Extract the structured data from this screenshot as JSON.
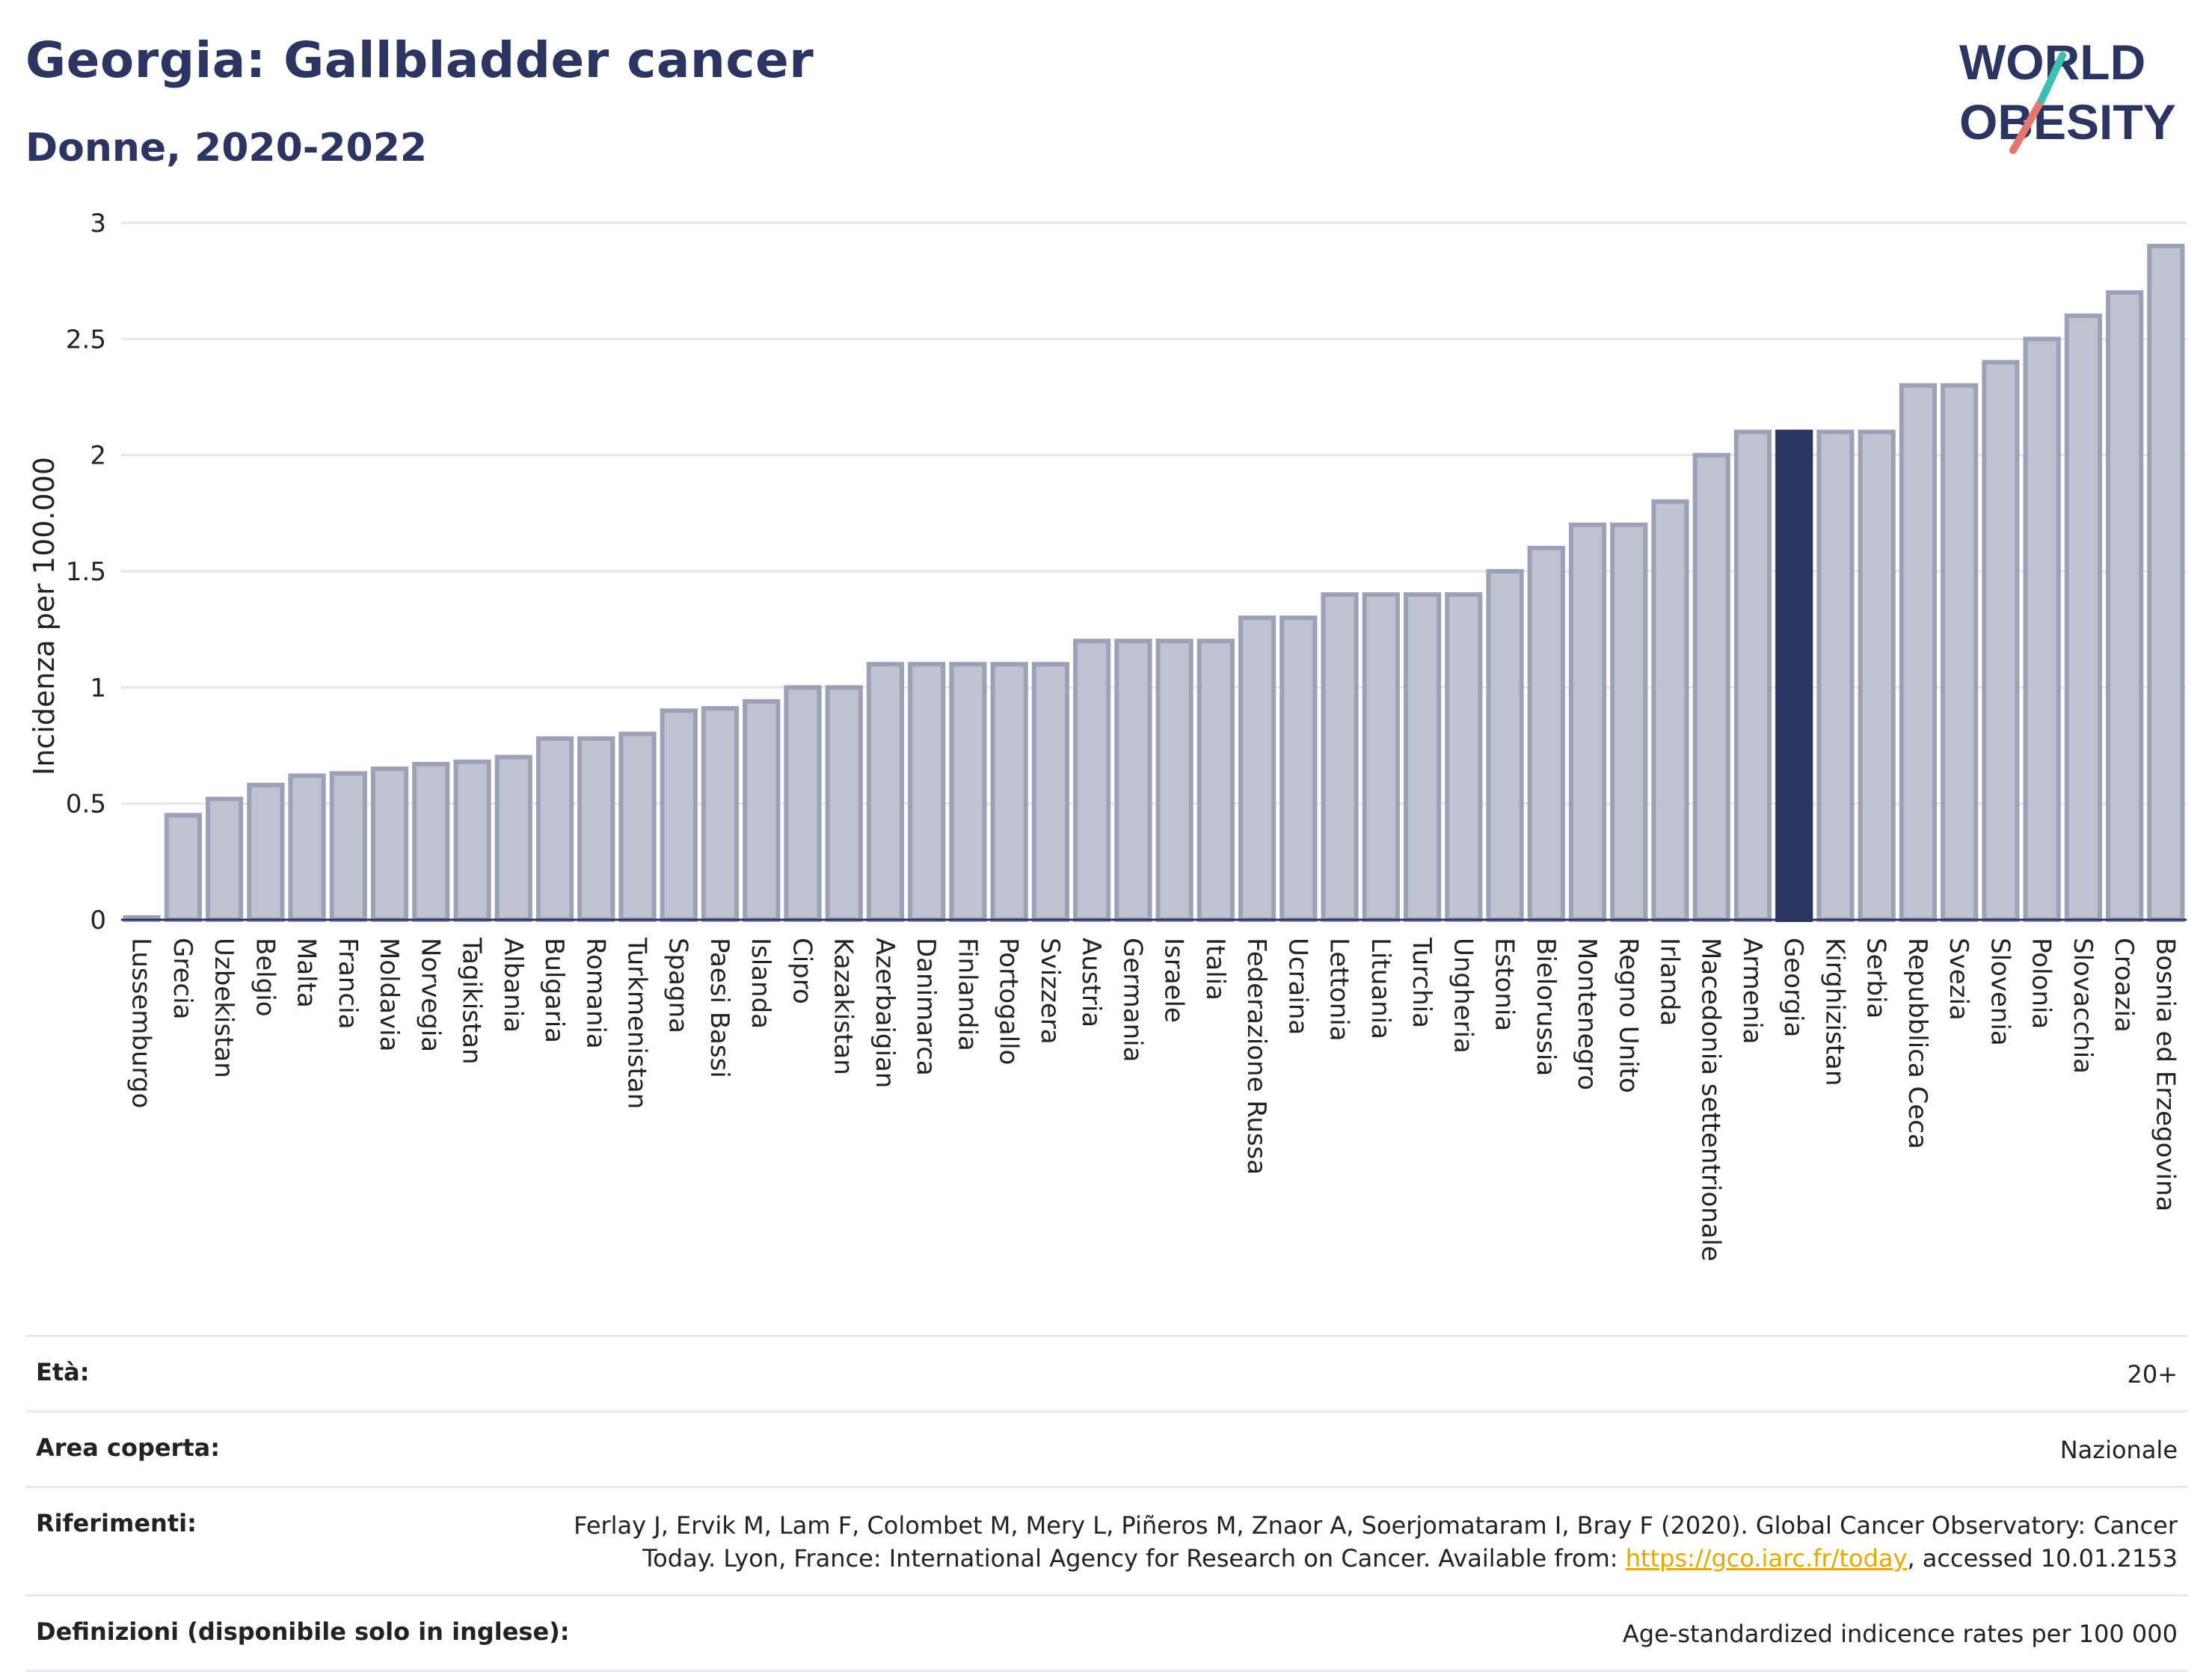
{
  "header": {
    "title": "Georgia: Gallbladder cancer",
    "subtitle": "Donne, 2020-2022",
    "logo_line1": "WORLD",
    "logo_line2": "OBESITY"
  },
  "colors": {
    "highlight": "#283462",
    "bar_fill": "#bfc3d0",
    "bar_stroke": "#9ba2b8",
    "title": "#2a3562",
    "logo_teal": "#3cbfae",
    "logo_coral": "#e8756a",
    "link": "#e8a800"
  },
  "chart_data": {
    "type": "bar",
    "ylabel": "Incidenza per 100.000",
    "ylim": [
      0,
      3
    ],
    "yticks": [
      "0",
      "0.5",
      "1",
      "1.5",
      "2",
      "2.5",
      "3"
    ],
    "ytick_values": [
      0,
      0.5,
      1,
      1.5,
      2,
      2.5,
      3
    ],
    "grid": true,
    "highlight": "Georgia",
    "categories": [
      "Lussemburgo",
      "Grecia",
      "Uzbekistan",
      "Belgio",
      "Malta",
      "Francia",
      "Moldavia",
      "Norvegia",
      "Tagikistan",
      "Albania",
      "Bulgaria",
      "Romania",
      "Turkmenistan",
      "Spagna",
      "Paesi Bassi",
      "Islanda",
      "Cipro",
      "Kazakistan",
      "Azerbaigian",
      "Danimarca",
      "Finlandia",
      "Portogallo",
      "Svizzera",
      "Austria",
      "Germania",
      "Israele",
      "Italia",
      "Federazione Russa",
      "Ucraina",
      "Lettonia",
      "Lituania",
      "Turchia",
      "Ungheria",
      "Estonia",
      "Bielorussia",
      "Montenegro",
      "Regno Unito",
      "Irlanda",
      "Macedonia settentrionale",
      "Armenia",
      "Georgia",
      "Kirghizistan",
      "Serbia",
      "Repubblica Ceca",
      "Svezia",
      "Slovenia",
      "Polonia",
      "Slovacchia",
      "Croazia",
      "Bosnia ed Erzegovina"
    ],
    "values": [
      0.01,
      0.45,
      0.52,
      0.58,
      0.62,
      0.63,
      0.65,
      0.67,
      0.68,
      0.7,
      0.78,
      0.78,
      0.8,
      0.9,
      0.91,
      0.94,
      1.0,
      1.0,
      1.1,
      1.1,
      1.1,
      1.1,
      1.1,
      1.2,
      1.2,
      1.2,
      1.2,
      1.3,
      1.3,
      1.4,
      1.4,
      1.4,
      1.4,
      1.5,
      1.6,
      1.7,
      1.7,
      1.8,
      2.0,
      2.1,
      2.1,
      2.1,
      2.1,
      2.3,
      2.3,
      2.4,
      2.5,
      2.6,
      2.7,
      2.9
    ]
  },
  "info": [
    {
      "label": "Età:",
      "value": "20+"
    },
    {
      "label": "Area coperta:",
      "value": "Nazionale"
    },
    {
      "label": "Riferimenti:",
      "value_before": "Ferlay J, Ervik M, Lam F, Colombet M, Mery L, Piñeros M, Znaor A, Soerjomataram I, Bray F (2020). Global Cancer Observatory: Cancer Today. Lyon, France: International Agency for Research on Cancer. Available from: ",
      "link": "https://gco.iarc.fr/today",
      "value_after": ", accessed 10.01.2153"
    },
    {
      "label": "Definizioni (disponibile solo in inglese):",
      "value": "Age-standardized indicence rates per 100 000"
    }
  ]
}
